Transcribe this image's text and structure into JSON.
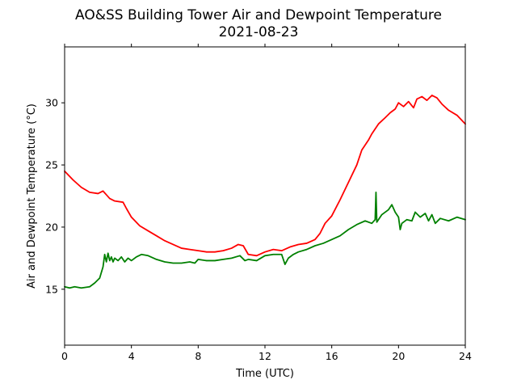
{
  "chart_data": {
    "type": "line",
    "title": "AO&SS Building Tower Air and Dewpoint Temperature",
    "subtitle": "2021-08-23",
    "xlabel": "Time (UTC)",
    "ylabel": "Air and Dewpoint Temperature (°C)",
    "xlim": [
      0,
      24
    ],
    "ylim": [
      10.5,
      34.5
    ],
    "xticks": [
      0,
      4,
      8,
      12,
      16,
      20,
      24
    ],
    "yticks": [
      15,
      20,
      25,
      30
    ],
    "grid": false,
    "legend": "none",
    "series": [
      {
        "color": "#ff0000",
        "x": [
          0,
          0.5,
          1.0,
          1.5,
          2.0,
          2.3,
          2.5,
          2.7,
          3.0,
          3.5,
          3.7,
          4.0,
          4.5,
          5.0,
          5.5,
          6.0,
          6.5,
          7.0,
          7.5,
          8.0,
          8.5,
          9.0,
          9.5,
          10.0,
          10.4,
          10.7,
          11.0,
          11.5,
          12.0,
          12.5,
          13.0,
          13.5,
          14.0,
          14.5,
          15.0,
          15.3,
          15.6,
          16.0,
          16.5,
          17.0,
          17.5,
          17.8,
          18.2,
          18.4,
          18.8,
          19.2,
          19.5,
          19.8,
          20.0,
          20.3,
          20.6,
          20.9,
          21.1,
          21.4,
          21.7,
          22.0,
          22.3,
          22.6,
          23.0,
          23.5,
          24.0
        ],
        "y": [
          24.5,
          23.8,
          23.2,
          22.8,
          22.7,
          22.9,
          22.6,
          22.3,
          22.1,
          22.0,
          21.5,
          20.8,
          20.1,
          19.7,
          19.3,
          18.9,
          18.6,
          18.3,
          18.2,
          18.1,
          18.0,
          18.0,
          18.1,
          18.3,
          18.6,
          18.5,
          17.8,
          17.7,
          18.0,
          18.2,
          18.1,
          18.4,
          18.6,
          18.7,
          19.0,
          19.5,
          20.3,
          20.9,
          22.2,
          23.6,
          25.0,
          26.2,
          27.0,
          27.5,
          28.3,
          28.8,
          29.2,
          29.5,
          30.0,
          29.7,
          30.1,
          29.6,
          30.3,
          30.5,
          30.2,
          30.6,
          30.4,
          29.9,
          29.4,
          29.0,
          28.3
        ]
      },
      {
        "color": "#008000",
        "x": [
          0,
          0.3,
          0.6,
          1.0,
          1.5,
          1.8,
          2.1,
          2.3,
          2.4,
          2.5,
          2.6,
          2.7,
          2.8,
          2.9,
          3.0,
          3.2,
          3.4,
          3.6,
          3.8,
          4.0,
          4.3,
          4.6,
          5.0,
          5.5,
          6.0,
          6.5,
          7.0,
          7.5,
          7.8,
          8.0,
          8.5,
          9.0,
          9.5,
          10.0,
          10.5,
          10.8,
          11.0,
          11.5,
          12.0,
          12.5,
          13.0,
          13.2,
          13.4,
          13.7,
          14.0,
          14.5,
          15.0,
          15.5,
          16.0,
          16.5,
          17.0,
          17.5,
          18.0,
          18.4,
          18.6,
          18.65,
          18.7,
          19.0,
          19.4,
          19.6,
          19.8,
          20.0,
          20.1,
          20.2,
          20.5,
          20.8,
          21.0,
          21.3,
          21.6,
          21.8,
          22.0,
          22.2,
          22.5,
          23.0,
          23.5,
          24.0
        ],
        "y": [
          15.2,
          15.1,
          15.2,
          15.1,
          15.2,
          15.5,
          15.9,
          16.8,
          17.8,
          17.2,
          17.9,
          17.3,
          17.6,
          17.2,
          17.5,
          17.3,
          17.6,
          17.2,
          17.5,
          17.3,
          17.6,
          17.8,
          17.7,
          17.4,
          17.2,
          17.1,
          17.1,
          17.2,
          17.1,
          17.4,
          17.3,
          17.3,
          17.4,
          17.5,
          17.7,
          17.3,
          17.4,
          17.3,
          17.7,
          17.8,
          17.8,
          17.0,
          17.5,
          17.8,
          18.0,
          18.2,
          18.5,
          18.7,
          19.0,
          19.3,
          19.8,
          20.2,
          20.5,
          20.3,
          20.6,
          22.8,
          20.4,
          21.0,
          21.4,
          21.8,
          21.2,
          20.8,
          19.8,
          20.3,
          20.6,
          20.5,
          21.2,
          20.8,
          21.1,
          20.5,
          21.0,
          20.3,
          20.7,
          20.5,
          20.8,
          20.6
        ]
      }
    ]
  }
}
